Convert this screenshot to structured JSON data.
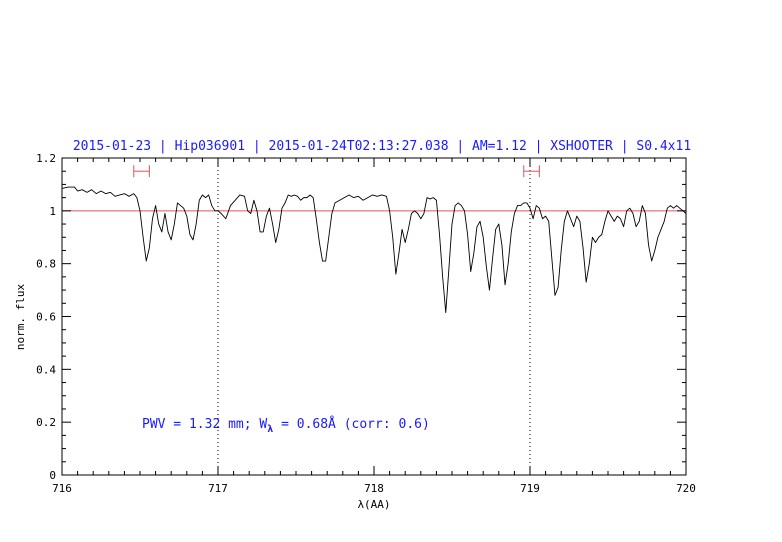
{
  "chart_data": {
    "type": "line",
    "title": "2015-01-23 | Hip036901 | 2015-01-24T02:13:27.038 | AM=1.12 | XSHOOTER | S0.4x11",
    "xlabel": "λ(AA)",
    "ylabel": "norm. flux",
    "xlim": [
      716,
      720
    ],
    "ylim": [
      0,
      1.2
    ],
    "x_ticks": [
      "716",
      "717",
      "718",
      "719",
      "720"
    ],
    "y_ticks": [
      "0",
      "0.2",
      "0.4",
      "0.6",
      "0.8",
      "1",
      "1.2"
    ],
    "reference_line": {
      "y": 1.0,
      "color": "#e8505a"
    },
    "vertical_markers": [
      717.0,
      719.0
    ],
    "ranges": [
      {
        "from": 716.46,
        "to": 716.56,
        "y": 1.15,
        "color": "#e8505a"
      },
      {
        "from": 718.96,
        "to": 719.06,
        "y": 1.15,
        "color": "#e8505a"
      }
    ],
    "annotation": {
      "pwv_prefix": "PWV  =  1.32  mm;  W",
      "lambda_symbol": "λ",
      "pwv_suffix": "  =  0.68Å  (corr: 0.6)"
    },
    "series": [
      {
        "color": "#000000",
        "points": [
          [
            716.0,
            1.085
          ],
          [
            716.04,
            1.09
          ],
          [
            716.08,
            1.09
          ],
          [
            716.1,
            1.075
          ],
          [
            716.13,
            1.08
          ],
          [
            716.16,
            1.07
          ],
          [
            716.19,
            1.08
          ],
          [
            716.22,
            1.065
          ],
          [
            716.25,
            1.075
          ],
          [
            716.28,
            1.065
          ],
          [
            716.31,
            1.07
          ],
          [
            716.34,
            1.055
          ],
          [
            716.37,
            1.06
          ],
          [
            716.4,
            1.065
          ],
          [
            716.43,
            1.055
          ],
          [
            716.46,
            1.065
          ],
          [
            716.48,
            1.05
          ],
          [
            716.5,
            1.0
          ],
          [
            716.52,
            0.9
          ],
          [
            716.54,
            0.81
          ],
          [
            716.56,
            0.86
          ],
          [
            716.58,
            0.97
          ],
          [
            716.6,
            1.02
          ],
          [
            716.62,
            0.95
          ],
          [
            716.64,
            0.92
          ],
          [
            716.66,
            0.99
          ],
          [
            716.68,
            0.92
          ],
          [
            716.7,
            0.89
          ],
          [
            716.72,
            0.95
          ],
          [
            716.74,
            1.03
          ],
          [
            716.76,
            1.02
          ],
          [
            716.78,
            1.01
          ],
          [
            716.8,
            0.98
          ],
          [
            716.82,
            0.91
          ],
          [
            716.84,
            0.89
          ],
          [
            716.86,
            0.95
          ],
          [
            716.88,
            1.04
          ],
          [
            716.9,
            1.06
          ],
          [
            716.92,
            1.05
          ],
          [
            716.94,
            1.06
          ],
          [
            716.96,
            1.02
          ],
          [
            716.98,
            1.0
          ],
          [
            717.0,
            1.0
          ],
          [
            717.02,
            0.99
          ],
          [
            717.05,
            0.97
          ],
          [
            717.08,
            1.02
          ],
          [
            717.11,
            1.04
          ],
          [
            717.14,
            1.06
          ],
          [
            717.17,
            1.055
          ],
          [
            717.19,
            1.0
          ],
          [
            717.21,
            0.99
          ],
          [
            717.23,
            1.04
          ],
          [
            717.25,
            1.0
          ],
          [
            717.27,
            0.92
          ],
          [
            717.29,
            0.92
          ],
          [
            717.31,
            0.98
          ],
          [
            717.33,
            1.01
          ],
          [
            717.35,
            0.95
          ],
          [
            717.37,
            0.88
          ],
          [
            717.39,
            0.93
          ],
          [
            717.41,
            1.01
          ],
          [
            717.43,
            1.03
          ],
          [
            717.45,
            1.06
          ],
          [
            717.47,
            1.055
          ],
          [
            717.49,
            1.06
          ],
          [
            717.51,
            1.055
          ],
          [
            717.53,
            1.04
          ],
          [
            717.55,
            1.05
          ],
          [
            717.57,
            1.05
          ],
          [
            717.59,
            1.06
          ],
          [
            717.61,
            1.05
          ],
          [
            717.63,
            0.97
          ],
          [
            717.65,
            0.88
          ],
          [
            717.67,
            0.81
          ],
          [
            717.69,
            0.81
          ],
          [
            717.71,
            0.9
          ],
          [
            717.73,
            0.99
          ],
          [
            717.75,
            1.03
          ],
          [
            717.78,
            1.04
          ],
          [
            717.81,
            1.05
          ],
          [
            717.84,
            1.06
          ],
          [
            717.87,
            1.05
          ],
          [
            717.9,
            1.055
          ],
          [
            717.93,
            1.04
          ],
          [
            717.96,
            1.05
          ],
          [
            717.99,
            1.06
          ],
          [
            718.02,
            1.055
          ],
          [
            718.05,
            1.06
          ],
          [
            718.08,
            1.055
          ],
          [
            718.1,
            1.0
          ],
          [
            718.12,
            0.9
          ],
          [
            718.14,
            0.76
          ],
          [
            718.16,
            0.84
          ],
          [
            718.18,
            0.93
          ],
          [
            718.2,
            0.88
          ],
          [
            718.22,
            0.93
          ],
          [
            718.24,
            0.99
          ],
          [
            718.26,
            1.0
          ],
          [
            718.28,
            0.99
          ],
          [
            718.3,
            0.97
          ],
          [
            718.32,
            0.99
          ],
          [
            718.34,
            1.05
          ],
          [
            718.36,
            1.045
          ],
          [
            718.38,
            1.05
          ],
          [
            718.4,
            1.04
          ],
          [
            718.42,
            0.91
          ],
          [
            718.44,
            0.75
          ],
          [
            718.46,
            0.615
          ],
          [
            718.48,
            0.78
          ],
          [
            718.5,
            0.95
          ],
          [
            718.52,
            1.02
          ],
          [
            718.54,
            1.03
          ],
          [
            718.56,
            1.02
          ],
          [
            718.58,
            1.0
          ],
          [
            718.6,
            0.91
          ],
          [
            718.62,
            0.77
          ],
          [
            718.64,
            0.84
          ],
          [
            718.66,
            0.94
          ],
          [
            718.68,
            0.96
          ],
          [
            718.7,
            0.9
          ],
          [
            718.72,
            0.79
          ],
          [
            718.74,
            0.7
          ],
          [
            718.76,
            0.82
          ],
          [
            718.78,
            0.93
          ],
          [
            718.8,
            0.95
          ],
          [
            718.82,
            0.87
          ],
          [
            718.84,
            0.72
          ],
          [
            718.86,
            0.8
          ],
          [
            718.88,
            0.92
          ],
          [
            718.9,
            0.99
          ],
          [
            718.92,
            1.02
          ],
          [
            718.94,
            1.02
          ],
          [
            718.96,
            1.03
          ],
          [
            718.98,
            1.03
          ],
          [
            719.0,
            1.01
          ],
          [
            719.02,
            0.97
          ],
          [
            719.04,
            1.02
          ],
          [
            719.06,
            1.01
          ],
          [
            719.08,
            0.97
          ],
          [
            719.1,
            0.98
          ],
          [
            719.12,
            0.96
          ],
          [
            719.14,
            0.82
          ],
          [
            719.16,
            0.68
          ],
          [
            719.18,
            0.71
          ],
          [
            719.2,
            0.85
          ],
          [
            719.22,
            0.96
          ],
          [
            719.24,
            1.0
          ],
          [
            719.26,
            0.97
          ],
          [
            719.28,
            0.94
          ],
          [
            719.3,
            0.98
          ],
          [
            719.32,
            0.96
          ],
          [
            719.34,
            0.86
          ],
          [
            719.36,
            0.73
          ],
          [
            719.38,
            0.8
          ],
          [
            719.4,
            0.9
          ],
          [
            719.42,
            0.88
          ],
          [
            719.44,
            0.9
          ],
          [
            719.46,
            0.91
          ],
          [
            719.48,
            0.96
          ],
          [
            719.5,
            1.0
          ],
          [
            719.52,
            0.98
          ],
          [
            719.54,
            0.96
          ],
          [
            719.56,
            0.98
          ],
          [
            719.58,
            0.97
          ],
          [
            719.6,
            0.94
          ],
          [
            719.62,
            1.0
          ],
          [
            719.64,
            1.01
          ],
          [
            719.66,
            0.99
          ],
          [
            719.68,
            0.94
          ],
          [
            719.7,
            0.96
          ],
          [
            719.72,
            1.02
          ],
          [
            719.74,
            0.99
          ],
          [
            719.76,
            0.87
          ],
          [
            719.78,
            0.81
          ],
          [
            719.8,
            0.85
          ],
          [
            719.82,
            0.9
          ],
          [
            719.84,
            0.93
          ],
          [
            719.86,
            0.96
          ],
          [
            719.88,
            1.01
          ],
          [
            719.9,
            1.02
          ],
          [
            719.92,
            1.01
          ],
          [
            719.94,
            1.02
          ],
          [
            719.96,
            1.01
          ],
          [
            719.98,
            1.0
          ],
          [
            720.0,
            0.99
          ]
        ]
      }
    ]
  }
}
